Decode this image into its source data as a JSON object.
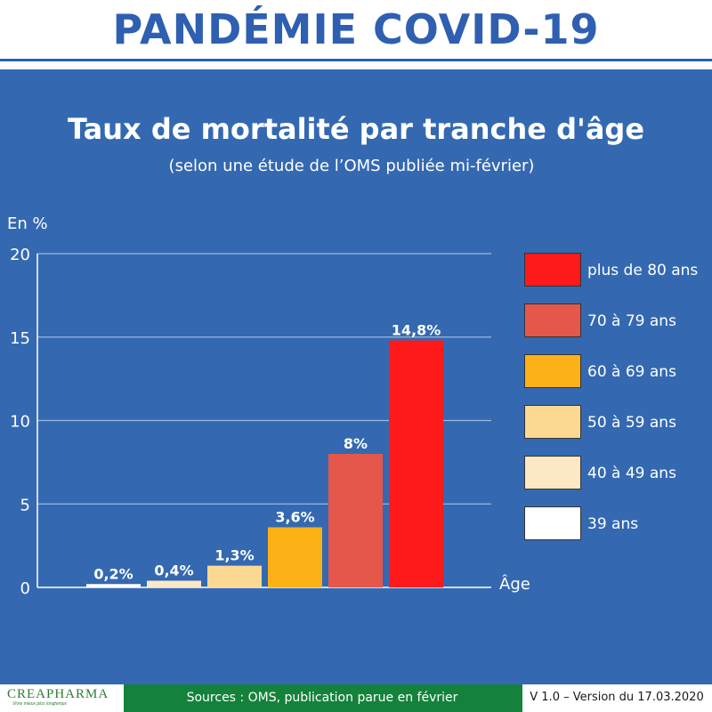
{
  "header": {
    "title": "PANDÉMIE COVID-19"
  },
  "chart_data": {
    "type": "bar",
    "title": "Taux de mortalité par tranche d'âge",
    "subtitle": "(selon une étude de l’OMS publiée mi-février)",
    "ylabel": "En %",
    "xlabel": "Âge",
    "ylim": [
      0,
      20
    ],
    "yticks": [
      "0",
      "5",
      "10",
      "15",
      "20"
    ],
    "grid": true,
    "legend_position": "right",
    "categories": [
      "39 ans",
      "40 à 49 ans",
      "50 à 59 ans",
      "60 à 69 ans",
      "70 à 79 ans",
      "plus de 80 ans"
    ],
    "values": [
      0.2,
      0.4,
      1.3,
      3.6,
      8,
      14.8
    ],
    "value_labels": [
      "0,2%",
      "0,4%",
      "1,3%",
      "3,6%",
      "8%",
      "14,8%"
    ],
    "colors": [
      "#ffffff",
      "#fde8c6",
      "#fcd893",
      "#fcb217",
      "#e5574b",
      "#fe1a1a"
    ],
    "legend_order": [
      "plus de 80 ans",
      "70 à 79 ans",
      "60 à 69 ans",
      "50 à 59 ans",
      "40 à 49 ans",
      "39 ans"
    ]
  },
  "footer": {
    "logo": "CREAPHARMA",
    "logo_tagline": "Vivre mieux plus longtemps",
    "sources": "Sources : OMS, publication parue en février",
    "version": "V 1.0 – Version du 17.03.2020"
  },
  "colors": {
    "panel": "#3469b1",
    "title": "#2f5fb0",
    "footer_green": "#14823b"
  }
}
